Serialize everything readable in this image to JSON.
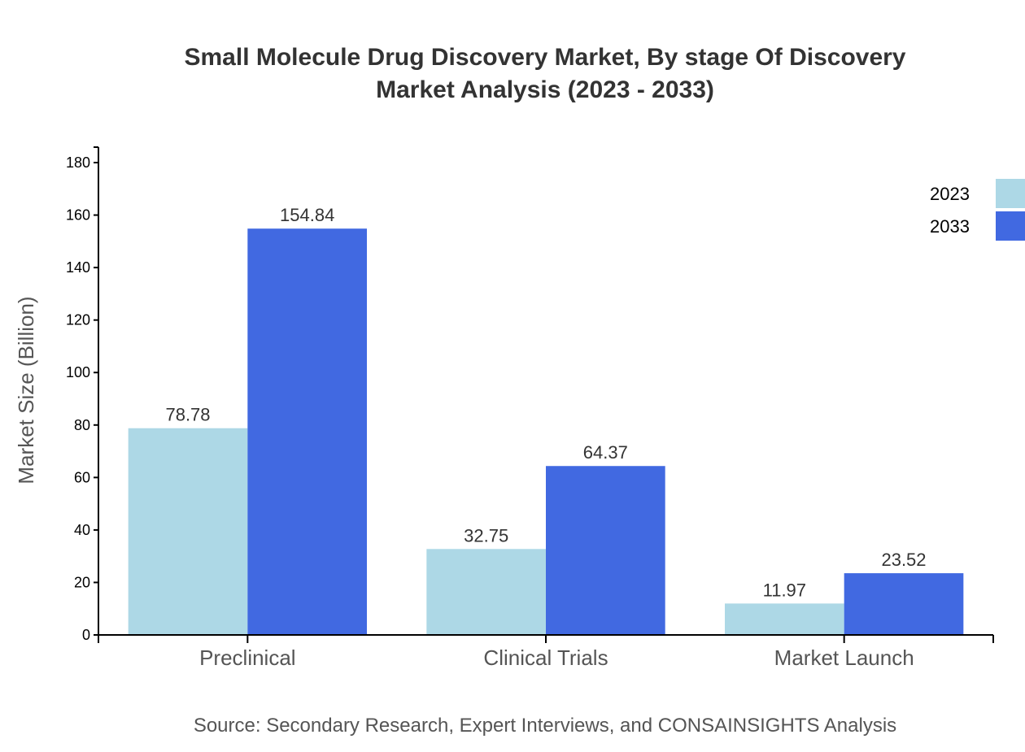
{
  "chart_data": {
    "type": "bar",
    "title_lines": [
      "Small Molecule Drug Discovery Market, By stage Of Discovery",
      "Market Analysis (2023 - 2033)"
    ],
    "xlabel": "",
    "ylabel": "Market Size (Billion)",
    "categories": [
      "Preclinical",
      "Clinical Trials",
      "Market Launch"
    ],
    "series": [
      {
        "name": "2023",
        "values": [
          78.78,
          32.75,
          11.97
        ],
        "color": "#add8e6"
      },
      {
        "name": "2033",
        "values": [
          154.84,
          64.37,
          23.52
        ],
        "color": "#4169e1"
      }
    ],
    "ylim": [
      0,
      180
    ],
    "yticks": [
      0,
      20,
      40,
      60,
      80,
      100,
      120,
      140,
      160,
      180
    ],
    "grid": false,
    "legend_position": "top-right",
    "source": "Source: Secondary Research, Expert Interviews, and CONSAINSIGHTS Analysis"
  }
}
